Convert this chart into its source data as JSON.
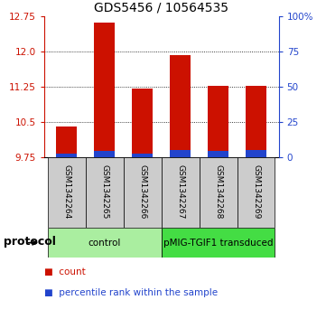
{
  "title": "GDS5456 / 10564535",
  "samples": [
    "GSM1342264",
    "GSM1342265",
    "GSM1342266",
    "GSM1342267",
    "GSM1342268",
    "GSM1342269"
  ],
  "red_values": [
    10.4,
    12.62,
    11.22,
    11.93,
    11.28,
    11.27
  ],
  "blue_values": [
    2.5,
    4.5,
    3.0,
    5.0,
    4.5,
    5.0
  ],
  "y_min": 9.75,
  "y_max": 12.75,
  "yticks_left": [
    9.75,
    10.5,
    11.25,
    12.0,
    12.75
  ],
  "yticks_right_pct": [
    0,
    25,
    50,
    75,
    100
  ],
  "dotted_lines": [
    10.5,
    11.25,
    12.0
  ],
  "groups": [
    {
      "label": "control",
      "start": 0,
      "end": 3,
      "color": "#aaeea0"
    },
    {
      "label": "pMIG-TGIF1 transduced",
      "start": 3,
      "end": 6,
      "color": "#44dd44"
    }
  ],
  "bar_width": 0.55,
  "red_color": "#cc1100",
  "blue_color": "#2244cc",
  "bg_color": "#cccccc",
  "protocol_label": "protocol",
  "legend_count": "count",
  "legend_percentile": "percentile rank within the sample",
  "title_fontsize": 10,
  "tick_fontsize": 7.5,
  "sample_fontsize": 6.5,
  "proto_fontsize": 7.5,
  "legend_fontsize": 7.5
}
